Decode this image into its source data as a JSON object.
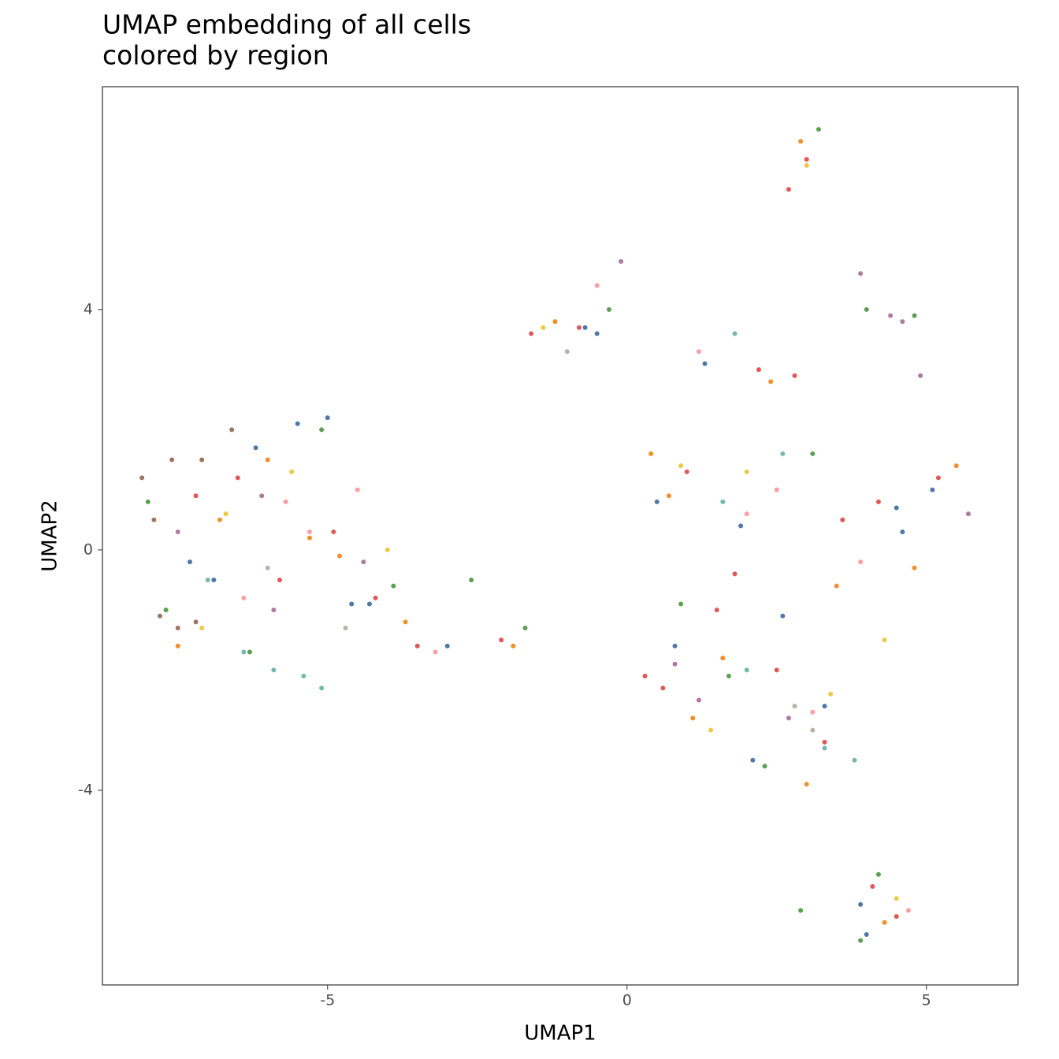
{
  "chart_data": {
    "type": "scatter",
    "title": "UMAP embedding of all cells",
    "subtitle": "colored by region",
    "x_label": "UMAP1",
    "y_label": "UMAP2",
    "xlim": [
      -8.76,
      6.53
    ],
    "ylim": [
      -7.24,
      7.71
    ],
    "xticks": [
      -5,
      0,
      5
    ],
    "yticks": [
      -4,
      0,
      4
    ],
    "grid": false,
    "series": [
      {
        "color": "#e15759",
        "x": [
          -6.5,
          -5.8,
          -4.9,
          -4.2,
          -7.2,
          -3.5,
          -2.1,
          -1.6,
          -0.8,
          1.0,
          2.2,
          2.8,
          1.5,
          0.6,
          2.5,
          3.3,
          4.2,
          5.2,
          3.0,
          2.7,
          4.1,
          4.5,
          0.3,
          1.8,
          3.6
        ],
        "values": [
          1.2,
          -0.5,
          0.3,
          -0.8,
          0.9,
          -1.6,
          -1.5,
          3.6,
          3.7,
          1.3,
          3.0,
          2.9,
          -1.0,
          -2.3,
          -2.0,
          -3.2,
          0.8,
          1.2,
          6.5,
          6.0,
          -5.6,
          -6.1,
          -2.1,
          -0.4,
          0.5
        ]
      },
      {
        "color": "#4e79a7",
        "x": [
          -5.5,
          -4.6,
          -7.3,
          -6.9,
          -4.3,
          -3.0,
          -0.7,
          -0.5,
          1.3,
          1.9,
          2.6,
          3.3,
          4.6,
          5.1,
          0.8,
          2.1,
          3.9,
          -5.0,
          -6.2,
          4.0,
          4.5,
          0.5
        ],
        "values": [
          2.1,
          -0.9,
          -0.2,
          -0.5,
          -0.9,
          -1.6,
          3.7,
          3.6,
          3.1,
          0.4,
          -1.1,
          -2.6,
          0.3,
          1.0,
          -1.6,
          -3.5,
          -5.9,
          2.2,
          1.7,
          -6.4,
          0.7,
          0.8
        ]
      },
      {
        "color": "#f28e2b",
        "x": [
          -7.5,
          -6.0,
          -4.8,
          -3.7,
          -1.9,
          -1.2,
          0.7,
          2.4,
          3.5,
          4.8,
          1.1,
          3.0,
          0.4,
          2.9,
          4.3,
          -5.3,
          -6.8,
          5.5,
          1.6
        ],
        "values": [
          -1.6,
          1.5,
          -0.1,
          -1.2,
          -1.6,
          3.8,
          0.9,
          2.8,
          -0.6,
          -0.3,
          -2.8,
          -3.9,
          1.6,
          6.8,
          -6.2,
          0.2,
          0.5,
          1.4,
          -1.8
        ]
      },
      {
        "color": "#59a14f",
        "x": [
          -8.0,
          -7.7,
          -5.1,
          -3.9,
          -2.6,
          -1.7,
          -0.3,
          1.7,
          2.3,
          3.1,
          4.0,
          4.8,
          3.2,
          0.9,
          -6.3,
          3.9,
          4.2,
          2.9
        ],
        "values": [
          0.8,
          -1.0,
          2.0,
          -0.6,
          -0.5,
          -1.3,
          4.0,
          -2.1,
          -3.6,
          1.6,
          4.0,
          3.9,
          7.0,
          -0.9,
          -1.7,
          -6.5,
          -5.4,
          -6.0
        ]
      },
      {
        "color": "#edc948",
        "x": [
          -6.7,
          -5.6,
          -4.0,
          -1.4,
          1.4,
          2.0,
          3.4,
          4.3,
          0.9,
          3.0,
          4.5,
          -7.1
        ],
        "values": [
          0.6,
          1.3,
          0.0,
          3.7,
          -3.0,
          1.3,
          -2.4,
          -1.5,
          1.4,
          6.4,
          -5.8,
          -1.3
        ]
      },
      {
        "color": "#b07aa1",
        "x": [
          -6.1,
          -4.4,
          -5.9,
          3.9,
          4.6,
          4.4,
          4.9,
          5.7,
          -0.1,
          1.2,
          2.7,
          0.8,
          -7.5
        ],
        "values": [
          0.9,
          -0.2,
          -1.0,
          4.6,
          3.8,
          3.9,
          2.9,
          0.6,
          4.8,
          -2.5,
          -2.8,
          -1.9,
          0.3
        ]
      },
      {
        "color": "#ff9da7",
        "x": [
          -5.7,
          -5.3,
          -4.5,
          -3.2,
          -0.5,
          2.0,
          2.5,
          1.2,
          3.9,
          4.7,
          -6.4,
          3.1
        ],
        "values": [
          0.8,
          0.3,
          1.0,
          -1.7,
          4.4,
          0.6,
          1.0,
          3.3,
          -0.2,
          -6.0,
          -0.8,
          -2.7
        ]
      },
      {
        "color": "#9c755f",
        "x": [
          -8.1,
          -7.9,
          -7.6,
          -7.1,
          -6.6,
          -7.8,
          -7.5,
          -7.2
        ],
        "values": [
          1.2,
          0.5,
          1.5,
          1.5,
          2.0,
          -1.1,
          -1.3,
          -1.2
        ]
      },
      {
        "color": "#76b7b2",
        "x": [
          -6.4,
          -5.9,
          -5.4,
          -5.1,
          1.8,
          2.6,
          3.3,
          1.6,
          2.0,
          -7.0,
          3.8
        ],
        "values": [
          -1.7,
          -2.0,
          -2.1,
          -2.3,
          3.6,
          1.6,
          -3.3,
          0.8,
          -2.0,
          -0.5,
          -3.5
        ]
      },
      {
        "color": "#bab0ac",
        "x": [
          -6.0,
          -4.7,
          3.1,
          -1.0,
          2.8
        ],
        "values": [
          -0.3,
          -1.3,
          -3.0,
          3.3,
          -2.6
        ]
      }
    ]
  }
}
